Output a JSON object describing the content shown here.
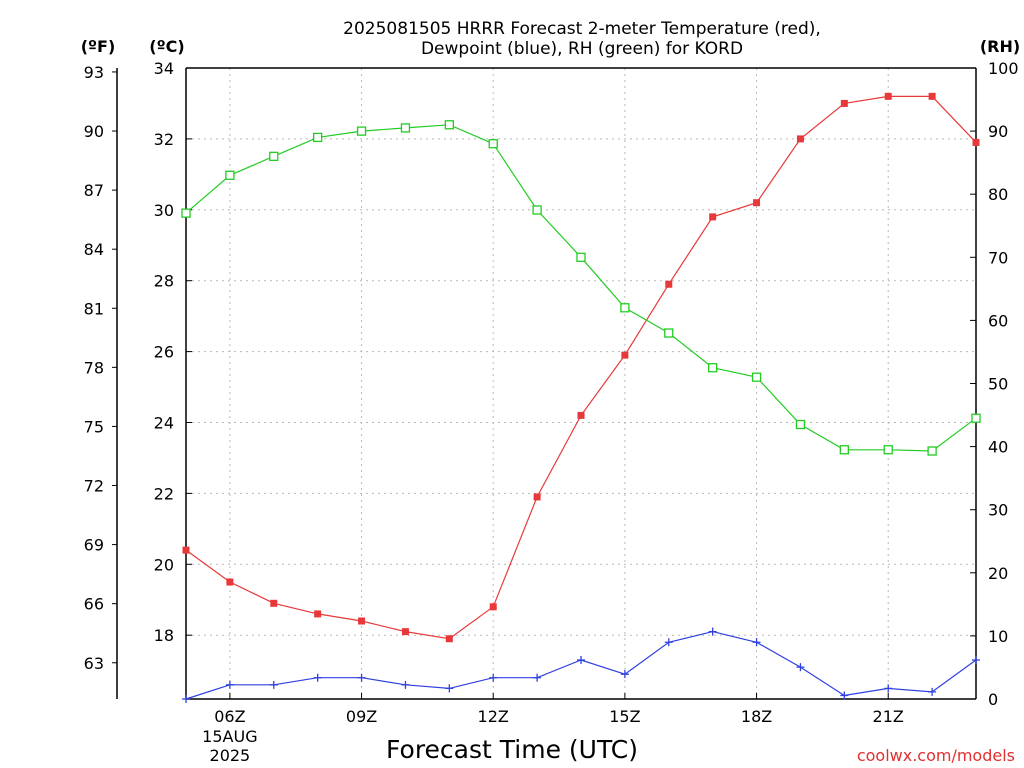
{
  "chart_data": {
    "type": "line",
    "title_lines": [
      "2025081505 HRRR Forecast 2-meter Temperature (red),",
      "Dewpoint (blue), RH (green) for KORD"
    ],
    "xlabel": "Forecast Time (UTC)",
    "credit": "coolwx.com/models",
    "x": [
      "05Z",
      "06Z",
      "07Z",
      "08Z",
      "09Z",
      "10Z",
      "11Z",
      "12Z",
      "13Z",
      "14Z",
      "15Z",
      "16Z",
      "17Z",
      "18Z",
      "19Z",
      "20Z",
      "21Z",
      "22Z",
      "23Z"
    ],
    "x_ticks": [
      {
        "label": "06Z",
        "date": "15AUG",
        "year": "2025"
      },
      {
        "label": "09Z"
      },
      {
        "label": "12Z"
      },
      {
        "label": "15Z"
      },
      {
        "label": "18Z"
      },
      {
        "label": "21Z"
      }
    ],
    "series": [
      {
        "name": "Temperature",
        "axis": "celsius",
        "color": "#e8383a",
        "marker": "filled-square",
        "values": [
          20.4,
          19.5,
          18.9,
          18.6,
          18.4,
          18.1,
          17.9,
          18.8,
          21.9,
          24.2,
          25.9,
          27.9,
          29.8,
          30.2,
          32.0,
          33.0,
          33.2,
          33.2,
          31.9
        ]
      },
      {
        "name": "Dewpoint",
        "axis": "celsius",
        "color": "#3040e0",
        "marker": "plus",
        "values": [
          16.2,
          16.6,
          16.6,
          16.8,
          16.8,
          16.6,
          16.5,
          16.8,
          16.8,
          17.3,
          16.9,
          17.8,
          18.1,
          17.8,
          17.1,
          16.3,
          16.5,
          16.4,
          17.3
        ]
      },
      {
        "name": "RH",
        "axis": "rh",
        "color": "#22cc22",
        "marker": "open-square",
        "values": [
          77.0,
          83.0,
          86.0,
          89.0,
          90.0,
          90.5,
          91.0,
          88.0,
          77.5,
          70.0,
          62.0,
          58.0,
          52.5,
          51.0,
          43.5,
          39.5,
          39.5,
          39.3,
          44.5
        ]
      }
    ],
    "axes": {
      "fahrenheit": {
        "label": "(ºF)",
        "ticks": [
          "63",
          "66",
          "69",
          "72",
          "75",
          "78",
          "81",
          "84",
          "87",
          "90",
          "93"
        ]
      },
      "celsius": {
        "label": "(ºC)",
        "ylim": [
          16.2,
          34
        ],
        "ticks": [
          "18",
          "20",
          "22",
          "24",
          "26",
          "28",
          "30",
          "32",
          "34"
        ]
      },
      "rh": {
        "label": "(RH)",
        "ylim": [
          0,
          100
        ],
        "ticks": [
          "0",
          "10",
          "20",
          "30",
          "40",
          "50",
          "60",
          "70",
          "80",
          "90",
          "100"
        ]
      }
    },
    "grid": true
  }
}
